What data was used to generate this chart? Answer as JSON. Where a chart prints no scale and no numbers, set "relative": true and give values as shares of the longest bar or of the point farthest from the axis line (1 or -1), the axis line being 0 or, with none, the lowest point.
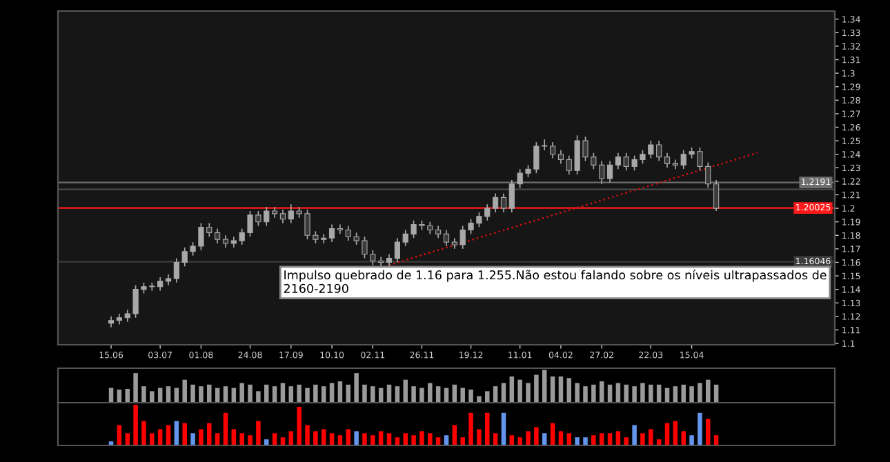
{
  "chart_data": [
    {
      "type": "candlestick",
      "color": "#a8a8a8",
      "categories": [
        null,
        null,
        null,
        null,
        null,
        null,
        "15.06",
        null,
        null,
        null,
        null,
        null,
        "03.07",
        null,
        null,
        null,
        null,
        "01.08",
        null,
        null,
        null,
        null,
        null,
        "24.08",
        null,
        null,
        null,
        null,
        "17.09",
        null,
        null,
        null,
        null,
        "10.10",
        null,
        null,
        null,
        null,
        "02.11",
        null,
        null,
        null,
        null,
        null,
        "26.11",
        null,
        null,
        null,
        null,
        null,
        "19.12",
        null,
        null,
        null,
        null,
        null,
        "11.01",
        null,
        null,
        null,
        null,
        "04.02",
        null,
        null,
        null,
        null,
        "27.02",
        null,
        null,
        null,
        null,
        null,
        "22.03",
        null,
        null,
        null,
        null,
        "15.04",
        null,
        null,
        null,
        null,
        null,
        null,
        null,
        null,
        null,
        null,
        null,
        null,
        null,
        null,
        null,
        null,
        null
      ],
      "ohlc": [
        null,
        null,
        null,
        null,
        null,
        null,
        [
          1.115,
          1.12,
          1.112,
          1.117
        ],
        [
          1.117,
          1.122,
          1.114,
          1.119
        ],
        [
          1.119,
          1.125,
          1.116,
          1.122
        ],
        [
          1.122,
          1.143,
          1.119,
          1.14
        ],
        [
          1.14,
          1.145,
          1.137,
          1.142
        ],
        [
          1.142,
          1.145,
          1.139,
          1.142
        ],
        [
          1.142,
          1.149,
          1.139,
          1.146
        ],
        [
          1.146,
          1.151,
          1.143,
          1.148
        ],
        [
          1.148,
          1.163,
          1.145,
          1.16
        ],
        [
          1.16,
          1.171,
          1.157,
          1.168
        ],
        [
          1.168,
          1.175,
          1.165,
          1.172
        ],
        [
          1.172,
          1.189,
          1.169,
          1.186
        ],
        [
          1.186,
          1.189,
          1.179,
          1.182
        ],
        [
          1.182,
          1.185,
          1.174,
          1.177
        ],
        [
          1.177,
          1.18,
          1.171,
          1.174
        ],
        [
          1.174,
          1.179,
          1.171,
          1.176
        ],
        [
          1.176,
          1.185,
          1.173,
          1.182
        ],
        [
          1.182,
          1.198,
          1.179,
          1.195
        ],
        [
          1.195,
          1.198,
          1.187,
          1.19
        ],
        [
          1.19,
          1.201,
          1.187,
          1.198
        ],
        [
          1.198,
          1.201,
          1.193,
          1.196
        ],
        [
          1.196,
          1.199,
          1.189,
          1.192
        ],
        [
          1.192,
          1.203,
          1.189,
          1.198
        ],
        [
          1.198,
          1.201,
          1.193,
          1.196
        ],
        [
          1.196,
          1.199,
          1.177,
          1.18
        ],
        [
          1.18,
          1.183,
          1.174,
          1.177
        ],
        [
          1.177,
          1.181,
          1.174,
          1.178
        ],
        [
          1.178,
          1.188,
          1.175,
          1.185
        ],
        [
          1.185,
          1.188,
          1.181,
          1.184
        ],
        [
          1.184,
          1.187,
          1.176,
          1.179
        ],
        [
          1.179,
          1.182,
          1.173,
          1.176
        ],
        [
          1.176,
          1.179,
          1.163,
          1.166
        ],
        [
          1.166,
          1.169,
          1.158,
          1.161
        ],
        [
          1.161,
          1.164,
          1.157,
          1.16
        ],
        [
          1.16,
          1.166,
          1.157,
          1.163
        ],
        [
          1.163,
          1.178,
          1.16,
          1.175
        ],
        [
          1.175,
          1.184,
          1.172,
          1.181
        ],
        [
          1.181,
          1.191,
          1.178,
          1.188
        ],
        [
          1.188,
          1.191,
          1.184,
          1.187
        ],
        [
          1.187,
          1.19,
          1.181,
          1.184
        ],
        [
          1.184,
          1.187,
          1.178,
          1.181
        ],
        [
          1.181,
          1.184,
          1.172,
          1.175
        ],
        [
          1.175,
          1.178,
          1.17,
          1.173
        ],
        [
          1.173,
          1.187,
          1.17,
          1.184
        ],
        [
          1.184,
          1.192,
          1.181,
          1.189
        ],
        [
          1.189,
          1.197,
          1.186,
          1.194
        ],
        [
          1.194,
          1.203,
          1.191,
          1.2
        ],
        [
          1.2,
          1.211,
          1.197,
          1.208
        ],
        [
          1.208,
          1.211,
          1.197,
          1.2
        ],
        [
          1.2,
          1.221,
          1.197,
          1.218
        ],
        [
          1.218,
          1.229,
          1.215,
          1.226
        ],
        [
          1.226,
          1.232,
          1.223,
          1.229
        ],
        [
          1.229,
          1.249,
          1.226,
          1.246
        ],
        [
          1.246,
          1.251,
          1.243,
          1.246
        ],
        [
          1.246,
          1.249,
          1.237,
          1.24
        ],
        [
          1.24,
          1.243,
          1.233,
          1.236
        ],
        [
          1.236,
          1.239,
          1.225,
          1.228
        ],
        [
          1.228,
          1.254,
          1.225,
          1.25
        ],
        [
          1.25,
          1.253,
          1.235,
          1.238
        ],
        [
          1.238,
          1.241,
          1.229,
          1.232
        ],
        [
          1.232,
          1.235,
          1.218,
          1.222
        ],
        [
          1.222,
          1.235,
          1.219,
          1.232
        ],
        [
          1.232,
          1.241,
          1.229,
          1.238
        ],
        [
          1.238,
          1.241,
          1.228,
          1.231
        ],
        [
          1.231,
          1.239,
          1.228,
          1.236
        ],
        [
          1.236,
          1.243,
          1.233,
          1.24
        ],
        [
          1.24,
          1.25,
          1.237,
          1.247
        ],
        [
          1.247,
          1.25,
          1.235,
          1.238
        ],
        [
          1.238,
          1.241,
          1.23,
          1.233
        ],
        [
          1.233,
          1.236,
          1.229,
          1.232
        ],
        [
          1.232,
          1.243,
          1.229,
          1.24
        ],
        [
          1.24,
          1.245,
          1.237,
          1.242
        ],
        [
          1.242,
          1.245,
          1.228,
          1.231
        ],
        [
          1.231,
          1.234,
          1.215,
          1.218
        ],
        [
          1.218,
          1.221,
          1.198,
          1.2
        ],
        null,
        null,
        null,
        null,
        null,
        null,
        null,
        null,
        null,
        null,
        null,
        null,
        null,
        null
      ],
      "series": [
        {
          "type": "line",
          "color": "#cc1111",
          "line_style": "dotted",
          "values": [
            null,
            null,
            null,
            null,
            null,
            null,
            null,
            null,
            null,
            null,
            null,
            null,
            null,
            null,
            null,
            null,
            null,
            null,
            null,
            null,
            null,
            null,
            null,
            null,
            null,
            null,
            null,
            null,
            null,
            null,
            null,
            null,
            null,
            null,
            null,
            null,
            null,
            null,
            null,
            null,
            1.158,
            null,
            null,
            null,
            null,
            null,
            null,
            null,
            null,
            null,
            null,
            null,
            null,
            null,
            null,
            null,
            null,
            null,
            null,
            null,
            null,
            null,
            null,
            null,
            null,
            null,
            null,
            null,
            null,
            null,
            null,
            null,
            null,
            null,
            null,
            null,
            null,
            null,
            null,
            null,
            null,
            null,
            null,
            null,
            null,
            1.241,
            null,
            null,
            null,
            null,
            null,
            null,
            null,
            null,
            null
          ]
        }
      ],
      "ylim": [
        1.099,
        1.346
      ],
      "yticks": [
        1.1,
        1.11,
        1.12,
        1.13,
        1.14,
        1.15,
        1.16,
        1.17,
        1.18,
        1.19,
        1.2,
        1.21,
        1.22,
        1.23,
        1.24,
        1.25,
        1.26,
        1.27,
        1.28,
        1.29,
        1.3,
        1.31,
        1.32,
        1.33,
        1.34
      ],
      "ref_lines": [
        {
          "axis": "y",
          "value": 1.2191,
          "label": "1.2191",
          "color": "#6e6e6e"
        },
        {
          "axis": "y",
          "value": 1.214,
          "color": "#4a4a4a"
        },
        {
          "axis": "y",
          "value": 1.16046,
          "label": "1.16046",
          "color": "#3c3c3c"
        },
        {
          "axis": "y",
          "value": 1.20025,
          "label": "1.20025",
          "color": "#ff1a1a"
        }
      ],
      "annotations": [
        "Impulso quebrado de 1.16 para 1.255.Não estou falando sobre os níveis ultrapassados de 2160-2190"
      ]
    },
    {
      "type": "bar",
      "relative": true,
      "color": "#9a9a9a",
      "categories": [
        null,
        null,
        null,
        null,
        null,
        null,
        null,
        null,
        null,
        null,
        null,
        null,
        null,
        null,
        null,
        null,
        null,
        null,
        null,
        null,
        null,
        null,
        null,
        null,
        null,
        null,
        null,
        null,
        null,
        null,
        null,
        null,
        null,
        null,
        null,
        null,
        null,
        null,
        null,
        null,
        null,
        null,
        null,
        null,
        null,
        null,
        null,
        null,
        null,
        null,
        null,
        null,
        null,
        null,
        null,
        null,
        null,
        null,
        null,
        null,
        null,
        null,
        null,
        null,
        null,
        null,
        null,
        null,
        null,
        null,
        null,
        null,
        null,
        null,
        null,
        null,
        null,
        null,
        null,
        null,
        null,
        null,
        null,
        null,
        null,
        null,
        null,
        null,
        null,
        null,
        null,
        null,
        null,
        null,
        null
      ],
      "values": [
        null,
        null,
        null,
        null,
        null,
        null,
        0.45,
        0.4,
        0.42,
        0.9,
        0.5,
        0.35,
        0.45,
        0.5,
        0.45,
        0.7,
        0.55,
        0.5,
        0.55,
        0.45,
        0.5,
        0.45,
        0.6,
        0.55,
        0.35,
        0.55,
        0.5,
        0.6,
        0.5,
        0.55,
        0.45,
        0.55,
        0.5,
        0.6,
        0.65,
        0.55,
        0.9,
        0.55,
        0.5,
        0.45,
        0.55,
        0.5,
        0.7,
        0.5,
        0.45,
        0.6,
        0.5,
        0.45,
        0.55,
        0.45,
        0.4,
        0.2,
        0.35,
        0.5,
        0.6,
        0.8,
        0.7,
        0.6,
        0.85,
        1.0,
        0.8,
        0.8,
        0.75,
        0.6,
        0.5,
        0.55,
        0.65,
        0.55,
        0.6,
        0.55,
        0.5,
        0.6,
        0.55,
        0.55,
        0.45,
        0.5,
        0.55,
        0.5,
        0.6,
        0.7,
        0.55,
        null,
        null,
        null,
        null,
        null,
        null,
        null,
        null,
        null,
        null,
        null,
        null,
        null,
        null
      ]
    },
    {
      "type": "bar",
      "relative": true,
      "categories": [
        null,
        null,
        null,
        null,
        null,
        null,
        null,
        null,
        null,
        null,
        null,
        null,
        null,
        null,
        null,
        null,
        null,
        null,
        null,
        null,
        null,
        null,
        null,
        null,
        null,
        null,
        null,
        null,
        null,
        null,
        null,
        null,
        null,
        null,
        null,
        null,
        null,
        null,
        null,
        null,
        null,
        null,
        null,
        null,
        null,
        null,
        null,
        null,
        null,
        null,
        null,
        null,
        null,
        null,
        null,
        null,
        null,
        null,
        null,
        null,
        null,
        null,
        null,
        null,
        null,
        null,
        null,
        null,
        null,
        null,
        null,
        null,
        null,
        null,
        null,
        null,
        null,
        null,
        null,
        null,
        null,
        null,
        null,
        null,
        null,
        null,
        null,
        null,
        null,
        null,
        null,
        null,
        null,
        null,
        null
      ],
      "values": [
        null,
        null,
        null,
        null,
        null,
        null,
        0.1,
        0.5,
        0.3,
        1.0,
        0.6,
        0.3,
        0.4,
        0.5,
        0.6,
        0.55,
        0.3,
        0.4,
        0.55,
        0.3,
        0.8,
        0.4,
        0.3,
        0.25,
        0.6,
        0.15,
        0.3,
        0.2,
        0.35,
        0.95,
        0.5,
        0.35,
        0.4,
        0.3,
        0.25,
        0.4,
        0.35,
        0.3,
        0.25,
        0.35,
        0.3,
        0.2,
        0.3,
        0.25,
        0.35,
        0.3,
        0.2,
        0.25,
        0.5,
        0.2,
        0.8,
        0.4,
        0.8,
        0.3,
        0.8,
        0.25,
        0.2,
        0.35,
        0.45,
        0.3,
        0.55,
        0.35,
        0.3,
        0.2,
        0.2,
        0.25,
        0.3,
        0.3,
        0.35,
        0.2,
        0.5,
        0.3,
        0.4,
        0.15,
        0.55,
        0.6,
        0.35,
        0.25,
        0.8,
        0.65,
        0.25,
        null,
        null,
        null,
        null,
        null,
        null,
        null,
        null,
        null,
        null,
        null,
        null,
        null,
        null
      ],
      "colors": [
        null,
        null,
        null,
        null,
        null,
        null,
        "#6495ed",
        "#ff0000",
        "#ff0000",
        "#ff0000",
        "#ff0000",
        "#ff0000",
        "#ff0000",
        "#ff0000",
        "#6495ed",
        "#ff0000",
        "#6495ed",
        "#ff0000",
        "#ff0000",
        "#ff0000",
        "#ff0000",
        "#ff0000",
        "#ff0000",
        "#ff0000",
        "#ff0000",
        "#6495ed",
        "#ff0000",
        "#ff0000",
        "#ff0000",
        "#ff0000",
        "#ff0000",
        "#ff0000",
        "#ff0000",
        "#ff0000",
        "#ff0000",
        "#ff0000",
        "#6495ed",
        "#ff0000",
        "#ff0000",
        "#ff0000",
        "#ff0000",
        "#ff0000",
        "#ff0000",
        "#ff0000",
        "#ff0000",
        "#ff0000",
        "#ff0000",
        "#6495ed",
        "#ff0000",
        "#ff0000",
        "#ff0000",
        "#ff0000",
        "#ff0000",
        "#ff0000",
        "#6495ed",
        "#ff0000",
        "#ff0000",
        "#ff0000",
        "#ff0000",
        "#6495ed",
        "#ff0000",
        "#ff0000",
        "#ff0000",
        "#6495ed",
        "#6495ed",
        "#ff0000",
        "#ff0000",
        "#ff0000",
        "#ff0000",
        "#ff0000",
        "#6495ed",
        "#ff0000",
        "#ff0000",
        "#ff0000",
        "#ff0000",
        "#ff0000",
        "#ff0000",
        "#6495ed",
        "#6495ed",
        "#ff0000",
        "#ff0000",
        null,
        null,
        null,
        null,
        null,
        null,
        null,
        null,
        null,
        null,
        null,
        null,
        null,
        null
      ]
    }
  ]
}
